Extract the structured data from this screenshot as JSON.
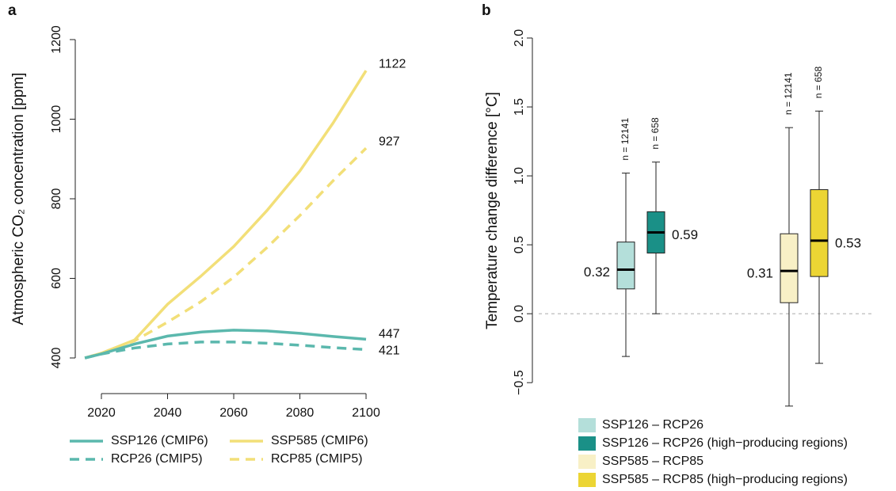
{
  "chart_data": [
    {
      "type": "line",
      "label": "a",
      "y_label": "Atmospheric CO₂ concentration [ppm]",
      "x": [
        2015,
        2020,
        2030,
        2040,
        2050,
        2060,
        2070,
        2080,
        2090,
        2100
      ],
      "xlim": [
        2012,
        2102
      ],
      "xticks": [
        2020,
        2040,
        2060,
        2080,
        2100
      ],
      "ylim": [
        400,
        1200
      ],
      "yticks": [
        400,
        600,
        800,
        1000,
        1200
      ],
      "series": [
        {
          "name": "SSP126 (CMIP6)",
          "color": "#5bb8ad",
          "dash": false,
          "values": [
            400,
            410,
            435,
            455,
            465,
            470,
            468,
            462,
            454,
            447
          ]
        },
        {
          "name": "RCP26 (CMIP5)",
          "color": "#5bb8ad",
          "dash": true,
          "values": [
            400,
            410,
            425,
            435,
            440,
            440,
            437,
            432,
            426,
            421
          ]
        },
        {
          "name": "SSP585 (CMIP6)",
          "color": "#f2df78",
          "dash": false,
          "values": [
            400,
            412,
            445,
            535,
            605,
            680,
            770,
            870,
            990,
            1122
          ]
        },
        {
          "name": "RCP85 (CMIP5)",
          "color": "#f2df78",
          "dash": true,
          "values": [
            400,
            412,
            443,
            490,
            541,
            603,
            677,
            758,
            845,
            927
          ]
        }
      ]
    },
    {
      "type": "box",
      "label": "b",
      "y_label": "Temperature change difference [°C]",
      "ylim": [
        -0.7,
        2.0
      ],
      "yticks": [
        {
          "value": -0.5,
          "label": "−0.5"
        },
        {
          "value": 0,
          "label": "0.0"
        },
        0.5,
        {
          "value": 1,
          "label": "1.0"
        },
        1.5,
        {
          "value": 2,
          "label": "2.0"
        }
      ],
      "hline": 0,
      "series": [
        {
          "name": "SSP126 – RCP26",
          "color": "#b4dfda",
          "values": [
            -0.31,
            0.18,
            0.32,
            0.52,
            1.02
          ],
          "n_label": "n = 12141"
        },
        {
          "name": "SSP126 – RCP26 (high−producing regions)",
          "color": "#1a9087",
          "values": [
            0.0,
            0.44,
            0.59,
            0.74,
            1.1
          ],
          "n_label": "n = 658"
        },
        {
          "name": "SSP585 – RCP85",
          "color": "#f8f0c6",
          "values": [
            -0.67,
            0.08,
            0.31,
            0.58,
            1.35
          ],
          "n_label": "n = 12141"
        },
        {
          "name": "SSP585 – RCP85 (high−producing regions)",
          "color": "#ecd534",
          "values": [
            -0.36,
            0.27,
            0.53,
            0.9,
            1.47
          ],
          "n_label": "n = 658"
        }
      ]
    }
  ]
}
